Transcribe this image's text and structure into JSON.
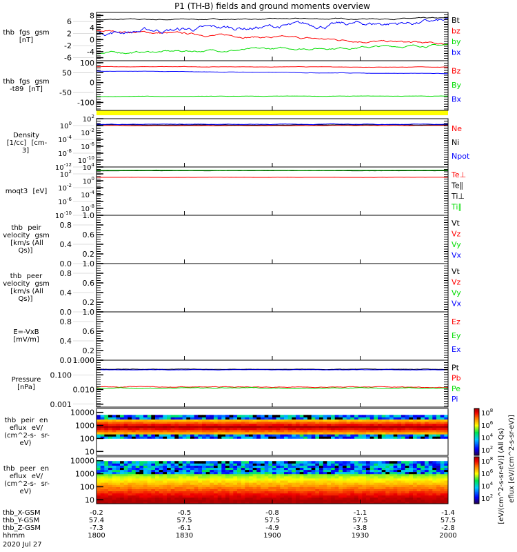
{
  "title": "P1  (TH-B) fields and ground moments overview",
  "colors": {
    "black": "#000000",
    "red": "#ff0000",
    "green": "#00dd00",
    "blue": "#0000ff",
    "yellow": "#ffff00"
  },
  "chart_data": {
    "type": "line",
    "x_range": [
      "1800",
      "2000"
    ],
    "panels": [
      {
        "id": "fgs",
        "ylabel": [
          "thb",
          "fgs",
          "gsm",
          "[nT]"
        ],
        "scale": "linear",
        "ylim": [
          -7,
          9
        ],
        "ticks": [
          "8",
          "6",
          "4",
          "2",
          "0",
          "-2",
          "-4",
          "-6"
        ],
        "tick_values": [
          8,
          6,
          4,
          2,
          0,
          -2,
          -4,
          -6
        ],
        "series": [
          {
            "name": "Bt",
            "color": "#000000",
            "start": 6.6,
            "end": 7.0,
            "noise": 0.2
          },
          {
            "name": "bz",
            "color": "#ff0000",
            "start": 3.0,
            "end": -1.5,
            "noise": 0.4
          },
          {
            "name": "by",
            "color": "#00dd00",
            "start": -4.5,
            "end": -1.8,
            "noise": 0.4
          },
          {
            "name": "bx",
            "color": "#0000ff",
            "start": 2.5,
            "end": 6.0,
            "noise": 0.9
          }
        ]
      },
      {
        "id": "fgs-t89",
        "ylabel": [
          "thb",
          "fgs",
          "gsm",
          "-t89",
          "[nT]"
        ],
        "scale": "linear",
        "ylim": [
          -140,
          110
        ],
        "ticks": [
          "100",
          "50",
          "0",
          "-50",
          "-100"
        ],
        "tick_values": [
          100,
          50,
          0,
          -50,
          -100
        ],
        "series": [
          {
            "name": "Bz",
            "color": "#ff0000",
            "start": 80,
            "end": 78,
            "noise": 1
          },
          {
            "name": "By",
            "color": "#00dd00",
            "start": -70,
            "end": -68,
            "noise": 1
          },
          {
            "name": "Bx",
            "color": "#0000ff",
            "start": 58,
            "end": 45,
            "noise": 1
          }
        ]
      },
      {
        "id": "density",
        "ylabel": [
          "Density",
          "[1/cc]",
          "[cm-3]"
        ],
        "scale": "log",
        "ylim": [
          -12,
          2
        ],
        "ticks": [
          "10^2",
          "10^0",
          "10^-2",
          "10^-4",
          "10^-6",
          "10^-8",
          "10^-10",
          "10^-12"
        ],
        "tick_values": [
          2,
          0,
          -2,
          -4,
          -6,
          -8,
          -10,
          -12
        ],
        "series": [
          {
            "name": "Ne",
            "color": "#ff0000",
            "start": 0.0,
            "end": 0.0,
            "noise": 0.05
          },
          {
            "name": "Ni",
            "color": "#000000",
            "start": 0.2,
            "end": 0.2,
            "noise": 0.05
          },
          {
            "name": "Npot",
            "color": "#0000ff",
            "start": 0.4,
            "end": 0.4,
            "noise": 0.08
          }
        ]
      },
      {
        "id": "temperature",
        "ylabel": [
          "moqt3",
          "[eV]"
        ],
        "scale": "log",
        "ylim": [
          -10,
          4
        ],
        "ticks": [
          "10^4",
          "10^2",
          "10^0",
          "10^-2",
          "10^-4",
          "10^-6",
          "10^-8",
          "10^-10"
        ],
        "tick_values": [
          4,
          2,
          0,
          -2,
          -4,
          -6,
          -8,
          -10
        ],
        "series": [
          {
            "name": "Te⊥",
            "color": "#ff0000",
            "start": 1.0,
            "end": 1.0,
            "noise": 0.02
          },
          {
            "name": "Te∥",
            "color": "#000000",
            "start": 2.9,
            "end": 2.9,
            "noise": 0.02
          },
          {
            "name": "Ti⊥",
            "color": "#000000",
            "start": 3.0,
            "end": 3.0,
            "noise": 0.02
          },
          {
            "name": "Ti∥",
            "color": "#00dd00",
            "start": 3.05,
            "end": 3.05,
            "noise": 0.03
          }
        ]
      },
      {
        "id": "peir-velocity",
        "ylabel": [
          "thb",
          "peir",
          "velocity",
          "gsm",
          "[km/s (All Qs)]"
        ],
        "scale": "linear",
        "ylim": [
          0,
          1
        ],
        "ticks": [
          "1.0",
          "0.8",
          "0.6",
          "0.4",
          "0.2",
          "0.0"
        ],
        "tick_values": [
          1,
          0.8,
          0.6,
          0.4,
          0.2,
          0
        ],
        "series": [
          {
            "name": "Vt",
            "color": "#000000"
          },
          {
            "name": "Vz",
            "color": "#ff0000"
          },
          {
            "name": "Vy",
            "color": "#00dd00"
          },
          {
            "name": "Vx",
            "color": "#0000ff"
          }
        ]
      },
      {
        "id": "peer-velocity",
        "ylabel": [
          "thb",
          "peer",
          "velocity",
          "gsm",
          "[km/s (All Qs)]"
        ],
        "scale": "linear",
        "ylim": [
          0,
          1
        ],
        "ticks": [
          "1.0",
          "0.8",
          "0.6",
          "0.4",
          "0.2",
          "0.0"
        ],
        "tick_values": [
          1,
          0.8,
          0.6,
          0.4,
          0.2,
          0
        ],
        "series": [
          {
            "name": "Vt",
            "color": "#000000"
          },
          {
            "name": "Vz",
            "color": "#ff0000"
          },
          {
            "name": "Vy",
            "color": "#00dd00"
          },
          {
            "name": "Vx",
            "color": "#0000ff"
          }
        ]
      },
      {
        "id": "efield",
        "ylabel": [
          "E=-VxB",
          "[mV/m]"
        ],
        "scale": "linear",
        "ylim": [
          0,
          1
        ],
        "ticks": [
          "1.0",
          "0.8",
          "0.6",
          "0.4",
          "0.2",
          "0.0"
        ],
        "tick_values": [
          1,
          0.8,
          0.6,
          0.4,
          0.2,
          0
        ],
        "series": [
          {
            "name": "Ez",
            "color": "#ff0000"
          },
          {
            "name": "Ey",
            "color": "#00dd00"
          },
          {
            "name": "Ex",
            "color": "#0000ff"
          }
        ]
      },
      {
        "id": "pressure",
        "ylabel": [
          "Pressure",
          "[nPa]"
        ],
        "scale": "log",
        "ylim": [
          -3.2,
          0
        ],
        "ticks": [
          "1.000",
          "0.100",
          "0.010",
          "0.001"
        ],
        "tick_values": [
          0,
          -1,
          -2,
          -3
        ],
        "series": [
          {
            "name": "Pt",
            "color": "#000000",
            "start": -0.62,
            "end": -0.62,
            "noise": 0.015
          },
          {
            "name": "Pb",
            "color": "#ff0000",
            "start": -1.82,
            "end": -1.84,
            "noise": 0.03
          },
          {
            "name": "Pe",
            "color": "#00dd00",
            "start": -1.9,
            "end": -1.9,
            "noise": 0.03
          },
          {
            "name": "Pi",
            "color": "#0000ff",
            "start": -0.66,
            "end": -0.66,
            "noise": 0.01
          }
        ]
      }
    ],
    "spectrograms": [
      {
        "id": "peir-eflux",
        "ylabel": [
          "thb",
          "peir",
          "en",
          "eflux",
          "eV/",
          "(cm^2-s-",
          "sr-eV)"
        ],
        "ylim": [
          5,
          20000
        ],
        "ticks": [
          "10000",
          "1000",
          "100",
          "10"
        ],
        "tick_values": [
          10000,
          1000,
          100,
          10
        ],
        "peak_energy": 800,
        "fill_range": [
          100,
          6000
        ]
      },
      {
        "id": "peer-eflux",
        "ylabel": [
          "thb",
          "peer",
          "en",
          "eflux",
          "eV/",
          "(cm^2-s-",
          "sr-eV)"
        ],
        "ylim": [
          5,
          20000
        ],
        "ticks": [
          "10000",
          "1000",
          "100",
          "10"
        ],
        "tick_values": [
          10000,
          1000,
          100,
          10
        ],
        "peak_energy": 10,
        "fill_range": [
          5,
          8000
        ]
      }
    ],
    "colorbars": [
      {
        "ticks": [
          "10^8",
          "10^6",
          "10^4",
          "10^2"
        ],
        "range_exp": [
          0,
          8
        ]
      },
      {
        "ticks": [
          "10^8",
          "10^6",
          "10^4",
          "10^2"
        ],
        "range_exp": [
          0,
          8
        ]
      }
    ],
    "colorbar_label": "[eV/(cm^2-s-sr-eV)] (All Qs)",
    "colorbar_label2": "eflux [eV/(cm^2-s-sr-eV)]",
    "xaxis": {
      "rows": [
        {
          "label": "thb_X-GSM",
          "values": [
            "-0.2",
            "-0.5",
            "-0.8",
            "-1.1",
            "-1.4"
          ]
        },
        {
          "label": "thb_Y-GSM",
          "values": [
            "57.4",
            "57.5",
            "57.5",
            "57.5",
            "57.5"
          ]
        },
        {
          "label": "thb_Z-GSM",
          "values": [
            "-7.3",
            "-6.1",
            "-4.9",
            "-3.8",
            "-2.8"
          ]
        },
        {
          "label": "hhmm",
          "values": [
            "1800",
            "1830",
            "1900",
            "1930",
            "2000"
          ]
        }
      ],
      "date": "2020 Jul 27"
    }
  }
}
